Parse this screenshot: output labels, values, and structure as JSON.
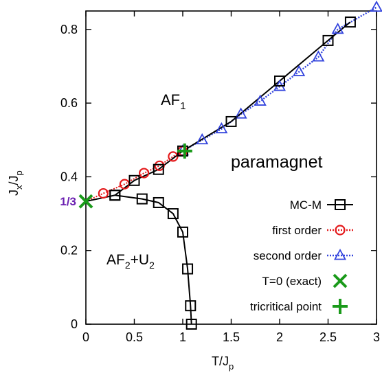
{
  "chart_data": {
    "type": "scatter",
    "xlabel_main": "T/J",
    "xlabel_sub": "p",
    "ylabel_main": "J",
    "ylabel_sub1": "x",
    "ylabel_mid": "/J",
    "ylabel_sub2": "p",
    "xlim": [
      0,
      3
    ],
    "ylim": [
      0,
      0.85
    ],
    "xticks": [
      0,
      0.5,
      1,
      1.5,
      2,
      2.5,
      3
    ],
    "xtick_labels": [
      "0",
      "0.5",
      "1",
      "1.5",
      "2",
      "2.5",
      "3"
    ],
    "yticks": [
      0,
      0.2,
      0.4,
      0.6,
      0.8
    ],
    "ytick_labels": [
      "0",
      "0.2",
      "0.4",
      "0.6",
      "0.8"
    ],
    "extra_ytick": {
      "value": 0.3333,
      "label": "1/3",
      "color": "#6a1fb0"
    },
    "regions": {
      "af1_main": "AF",
      "af1_sub": "1",
      "paramagnet": "paramagnet",
      "af2_a": "AF",
      "af2_a_sub": "2",
      "af2_plus": "+U",
      "af2_b_sub": "2"
    },
    "legend_position": "bottom-right",
    "series": [
      {
        "name": "MC-M",
        "marker": "square",
        "color": "#000000",
        "line": "solid",
        "points": [
          [
            0.3,
            0.35
          ],
          [
            0.58,
            0.34
          ],
          [
            0.75,
            0.33
          ],
          [
            0.9,
            0.3
          ],
          [
            1.0,
            0.25
          ],
          [
            1.05,
            0.15
          ],
          [
            1.08,
            0.05
          ],
          [
            1.09,
            0.0
          ]
        ],
        "points_upper": [
          [
            0.3,
            0.35
          ],
          [
            0.5,
            0.39
          ],
          [
            0.75,
            0.42
          ],
          [
            1.0,
            0.47
          ],
          [
            1.5,
            0.55
          ],
          [
            2.0,
            0.66
          ],
          [
            2.5,
            0.77
          ],
          [
            2.73,
            0.82
          ]
        ]
      },
      {
        "name": "first order",
        "marker": "circle",
        "color": "#e41a1c",
        "line": "dotted",
        "points": [
          [
            0.18,
            0.355
          ],
          [
            0.4,
            0.38
          ],
          [
            0.6,
            0.41
          ],
          [
            0.76,
            0.43
          ],
          [
            0.9,
            0.455
          ],
          [
            1.0,
            0.47
          ]
        ]
      },
      {
        "name": "second order",
        "marker": "triangle",
        "color": "#3344dd",
        "line": "dotted",
        "points": [
          [
            1.0,
            0.47
          ],
          [
            1.2,
            0.5
          ],
          [
            1.4,
            0.53
          ],
          [
            1.6,
            0.57
          ],
          [
            1.8,
            0.605
          ],
          [
            2.0,
            0.645
          ],
          [
            2.2,
            0.685
          ],
          [
            2.4,
            0.725
          ],
          [
            2.6,
            0.8
          ],
          [
            3.0,
            0.86
          ]
        ]
      },
      {
        "name": "T=0 (exact)",
        "marker": "x",
        "color": "#1a9a1a",
        "points": [
          [
            0,
            0.3333
          ]
        ]
      },
      {
        "name": "tricritical point",
        "marker": "plus",
        "color": "#1a9a1a",
        "points": [
          [
            1.02,
            0.47
          ]
        ]
      }
    ]
  }
}
